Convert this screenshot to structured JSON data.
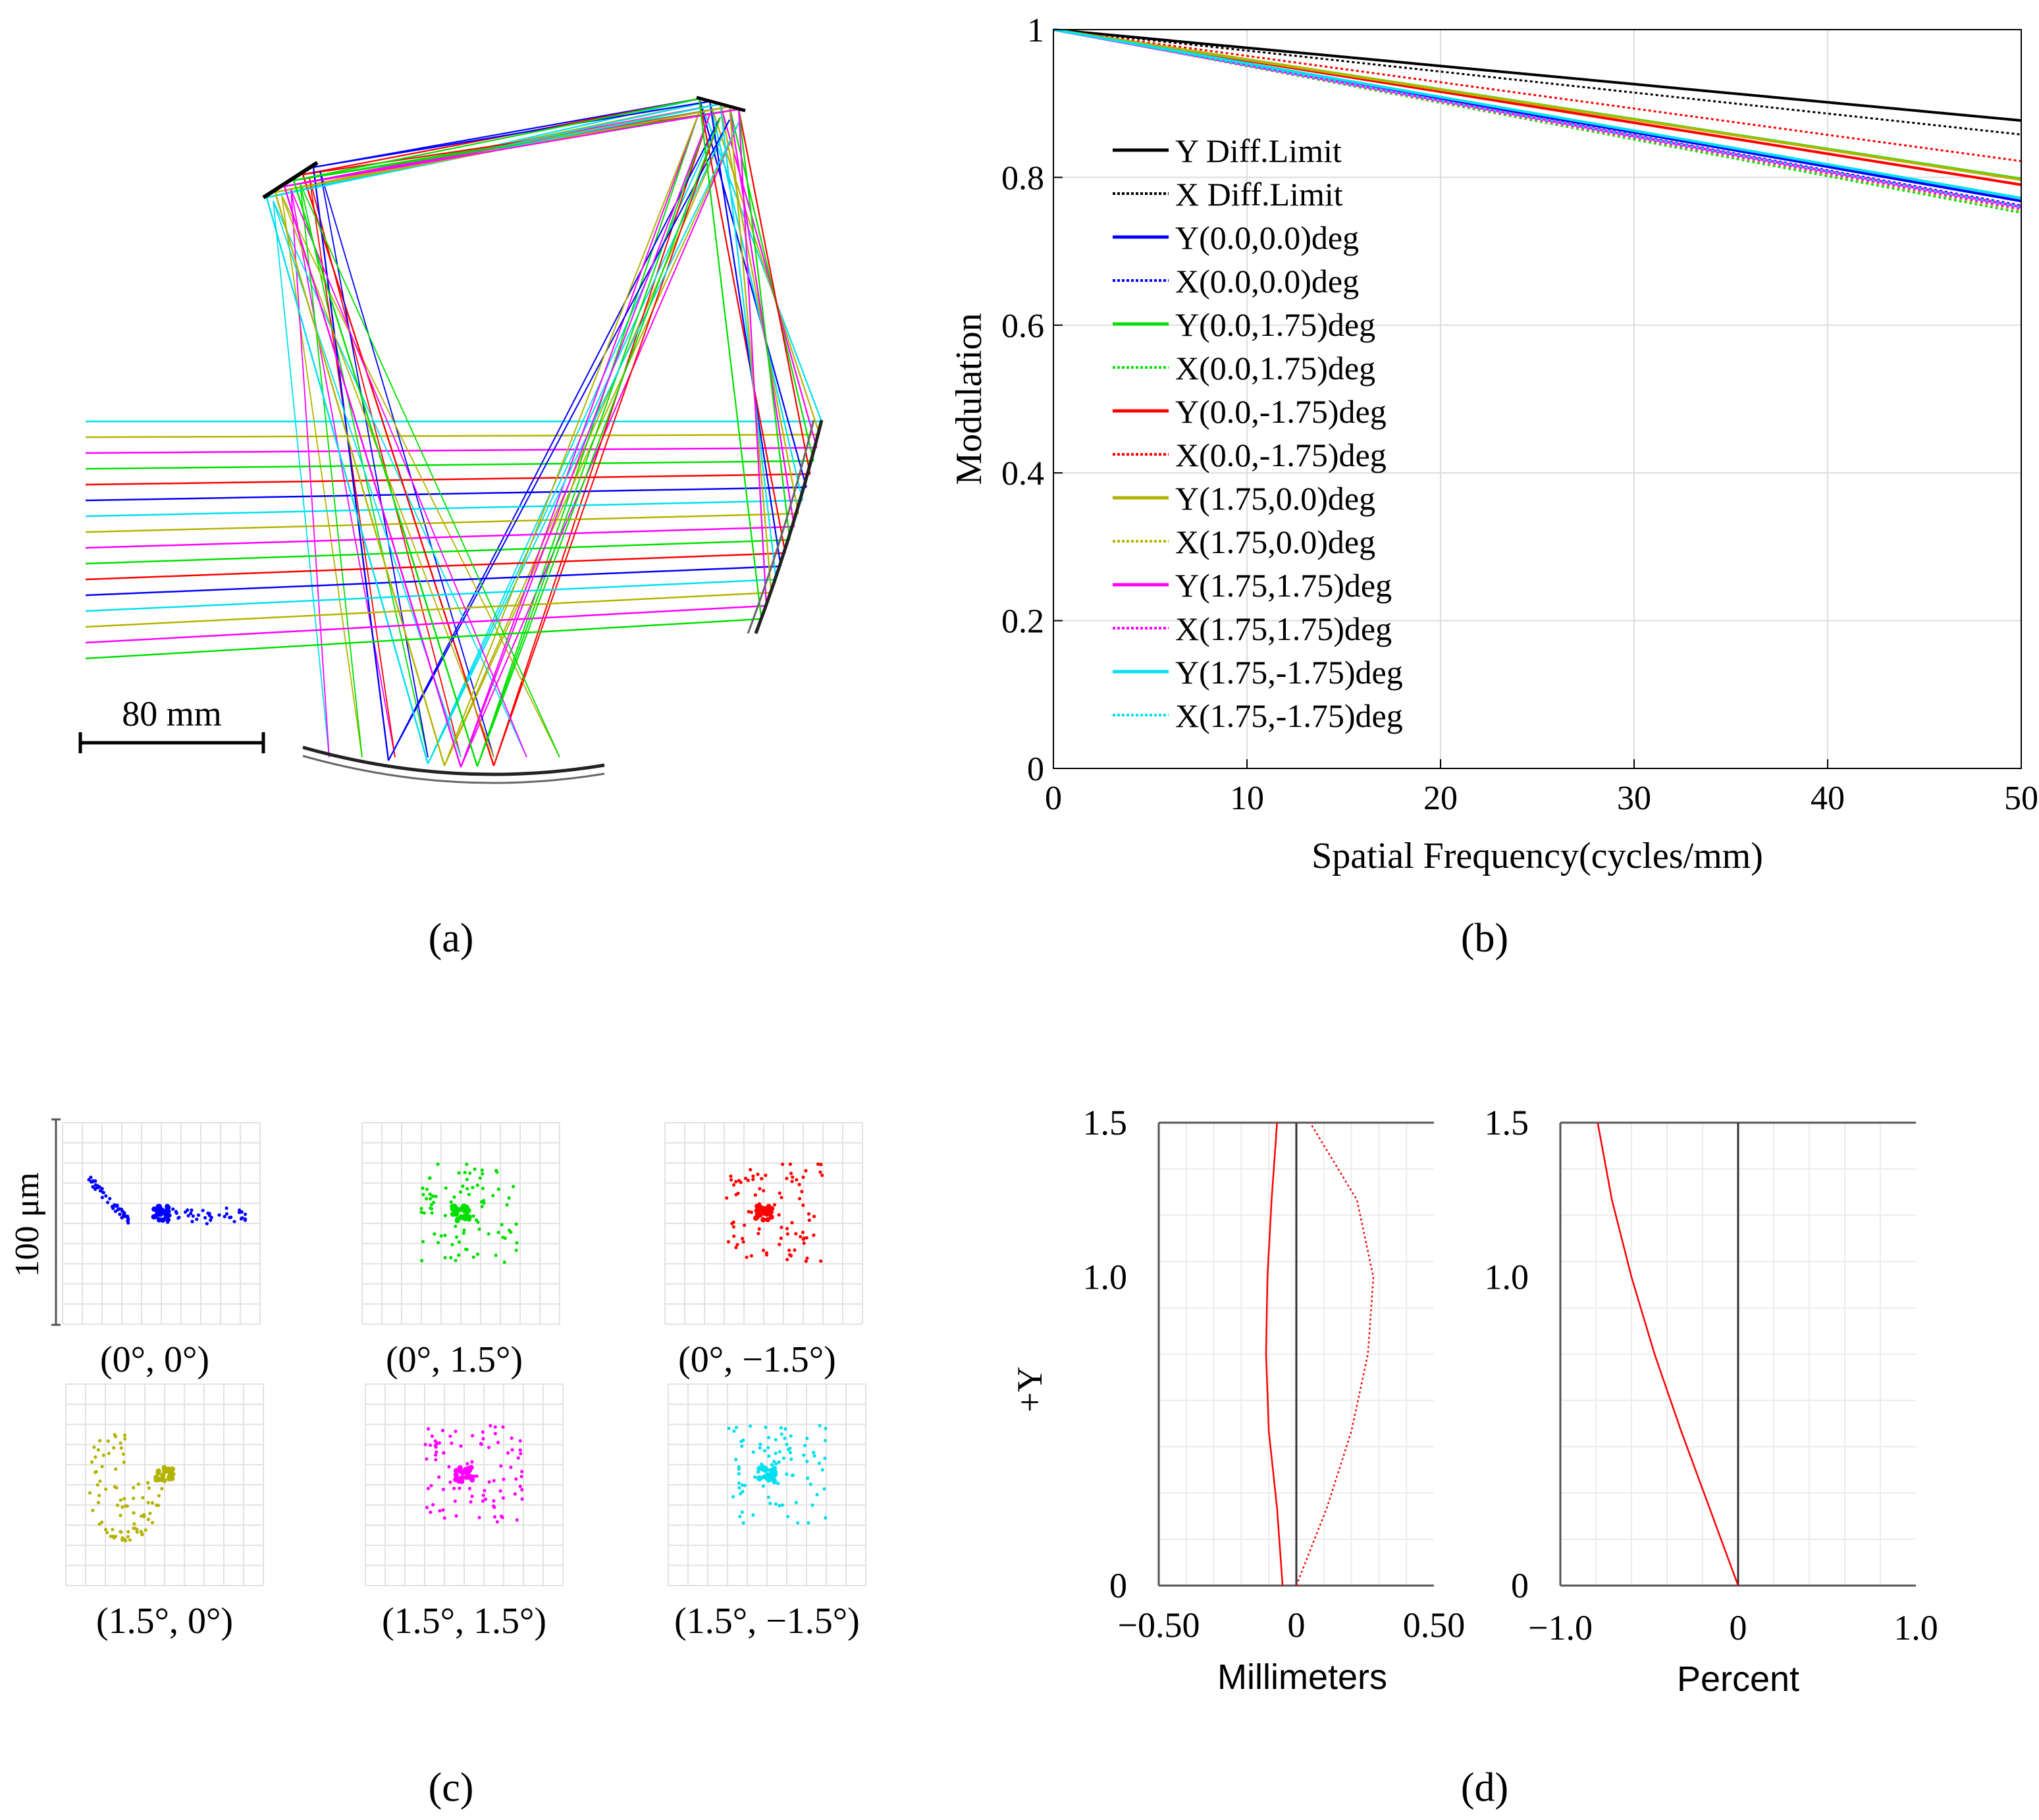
{
  "panels": {
    "a": {
      "label": "(a)",
      "scale_bar": "80 mm"
    },
    "b": {
      "label": "(b)"
    },
    "c": {
      "label": "(c)",
      "scale_label": "100 μm"
    },
    "d": {
      "label": "(d)"
    }
  },
  "colors": {
    "black": "#000000",
    "blue": "#0000ff",
    "green": "#00e000",
    "red": "#ff0000",
    "olive": "#b3b300",
    "magenta": "#ff00ff",
    "cyan": "#00e0f0",
    "grid": "#dcdcdc"
  },
  "chart_data": [
    {
      "type": "line",
      "panel": "b",
      "xlabel": "Spatial Frequency(cycles/mm)",
      "ylabel": "Modulation",
      "xlim": [
        0,
        50
      ],
      "ylim": [
        0,
        1
      ],
      "xticks": [
        "0",
        "10",
        "20",
        "30",
        "40",
        "50"
      ],
      "yticks": [
        "0",
        "0.2",
        "0.4",
        "0.6",
        "0.8",
        "1"
      ],
      "grid": true,
      "legend_position": "left",
      "x": [
        0,
        50
      ],
      "series": [
        {
          "name": "Y Diff.Limit",
          "color": "#000000",
          "style": "solid",
          "values": [
            1,
            0.877
          ]
        },
        {
          "name": "X Diff.Limit",
          "color": "#000000",
          "style": "dotted",
          "values": [
            1,
            0.858
          ]
        },
        {
          "name": "Y(0.0,0.0)deg",
          "color": "#0000ff",
          "style": "solid",
          "values": [
            1,
            0.768
          ]
        },
        {
          "name": "X(0.0,0.0)deg",
          "color": "#0000ff",
          "style": "dotted",
          "values": [
            1,
            0.762
          ]
        },
        {
          "name": "Y(0.0,1.75)deg",
          "color": "#00e000",
          "style": "solid",
          "values": [
            1,
            0.798
          ]
        },
        {
          "name": "X(0.0,1.75)deg",
          "color": "#00e000",
          "style": "dotted",
          "values": [
            1,
            0.752
          ]
        },
        {
          "name": "Y(0.0,-1.75)deg",
          "color": "#ff0000",
          "style": "solid",
          "values": [
            1,
            0.79
          ]
        },
        {
          "name": "X(0.0,-1.75)deg",
          "color": "#ff0000",
          "style": "dotted",
          "values": [
            1,
            0.822
          ]
        },
        {
          "name": "Y(1.75,0.0)deg",
          "color": "#b3b300",
          "style": "solid",
          "values": [
            1,
            0.797
          ]
        },
        {
          "name": "X(1.75,0.0)deg",
          "color": "#b3b300",
          "style": "dotted",
          "values": [
            1,
            0.755
          ]
        },
        {
          "name": "Y(1.75,1.75)deg",
          "color": "#ff00ff",
          "style": "solid",
          "values": [
            1,
            0.76
          ]
        },
        {
          "name": "X(1.75,1.75)deg",
          "color": "#ff00ff",
          "style": "dotted",
          "values": [
            1,
            0.757
          ]
        },
        {
          "name": "Y(1.75,-1.75)deg",
          "color": "#00e0f0",
          "style": "solid",
          "values": [
            1,
            0.772
          ]
        },
        {
          "name": "X(1.75,-1.75)deg",
          "color": "#00e0f0",
          "style": "dotted",
          "values": [
            1,
            0.76
          ]
        }
      ]
    },
    {
      "type": "scatter",
      "panel": "c",
      "subplots": [
        {
          "label": "(0°, 0°)",
          "color": "#0000ff"
        },
        {
          "label": "(0°, 1.5°)",
          "color": "#00e000"
        },
        {
          "label": "(0°, −1.5°)",
          "color": "#ff0000"
        },
        {
          "label": "(1.5°, 0°)",
          "color": "#b3b300"
        },
        {
          "label": "(1.5°, 1.5°)",
          "color": "#ff00ff"
        },
        {
          "label": "(1.5°, −1.5°)",
          "color": "#00e0f0"
        }
      ]
    },
    {
      "type": "line",
      "panel": "d-left",
      "xlabel": "Millimeters",
      "ylabel": "+Y",
      "xlim": [
        -0.5,
        0.5
      ],
      "ylim": [
        0,
        1.5
      ],
      "xticks": [
        "−0.50",
        "0",
        "0.50"
      ],
      "yticks": [
        "0",
        "1.0",
        "1.5"
      ],
      "series": [
        {
          "name": "",
          "color": "#ff0000",
          "style": "solid",
          "x": [
            -0.05,
            -0.07,
            -0.1,
            -0.11,
            -0.105,
            -0.09,
            -0.07
          ],
          "y": [
            0,
            0.25,
            0.5,
            0.75,
            1.0,
            1.25,
            1.5
          ]
        },
        {
          "name": "",
          "color": "#ff0000",
          "style": "dotted",
          "x": [
            0,
            0.11,
            0.2,
            0.26,
            0.28,
            0.22,
            0.05
          ],
          "y": [
            0,
            0.25,
            0.5,
            0.75,
            1.0,
            1.25,
            1.5
          ]
        }
      ]
    },
    {
      "type": "line",
      "panel": "d-right",
      "xlabel": "Percent",
      "xlim": [
        -1.0,
        1.0
      ],
      "ylim": [
        0,
        1.5
      ],
      "xticks": [
        "−1.0",
        "0",
        "1.0"
      ],
      "yticks": [
        "0",
        "1.0",
        "1.5"
      ],
      "series": [
        {
          "name": "",
          "color": "#ff0000",
          "style": "solid",
          "x": [
            0,
            -0.16,
            -0.32,
            -0.47,
            -0.6,
            -0.71,
            -0.79
          ],
          "y": [
            0,
            0.25,
            0.5,
            0.75,
            1.0,
            1.25,
            1.5
          ]
        }
      ]
    }
  ]
}
